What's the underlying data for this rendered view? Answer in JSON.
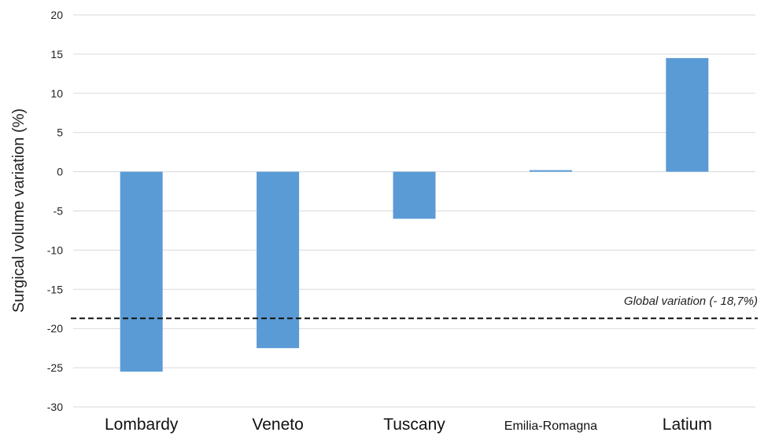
{
  "chart_data": {
    "type": "bar",
    "title": "",
    "xlabel": "",
    "ylabel": "Surgical volume variation (%)",
    "categories": [
      "Lombardy",
      "Veneto",
      "Tuscany",
      "Emilia-Romagna",
      "Latium"
    ],
    "values": [
      -25.5,
      -22.5,
      -6.0,
      0.2,
      14.5
    ],
    "ylim": [
      -30,
      20
    ],
    "yticks": [
      "20",
      "15",
      "10",
      "5",
      "0",
      "-5",
      "-10",
      "-15",
      "-20",
      "-25",
      "-30"
    ],
    "grid": true,
    "legend": "none",
    "bar_color": "#5b9bd5",
    "reference_line": {
      "value": -18.7,
      "label": "Global variation (- 18,7%)",
      "style": "dashed"
    }
  }
}
